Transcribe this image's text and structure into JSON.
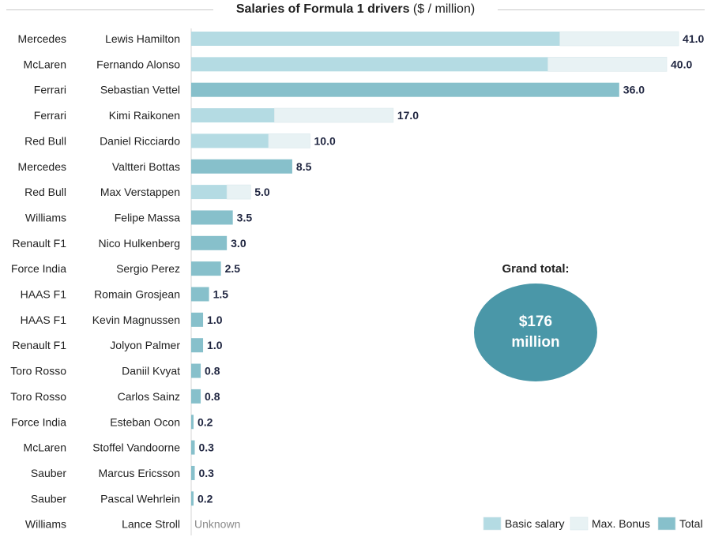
{
  "title": {
    "bold": "Salaries of Formula 1 drivers",
    "rest": " ($ / million)"
  },
  "grand_total": {
    "label": "Grand total:",
    "line1": "$176",
    "line2": "million"
  },
  "colors": {
    "basic": "#b4dbe3",
    "bonus": "#e8f2f4",
    "total": "#87c0cb",
    "circle": "#4a97a8"
  },
  "chart_data": {
    "type": "bar",
    "orientation": "horizontal",
    "stacked": true,
    "title": "Salaries of Formula 1 drivers ($ / million)",
    "xlim": [
      0,
      41
    ],
    "legend": [
      "Basic salary",
      "Max. Bonus",
      "Total"
    ],
    "legend_position": "bottom-right",
    "rows": [
      {
        "team": "Mercedes",
        "driver": "Lewis Hamilton",
        "basic": 31.0,
        "bonus": 10.0,
        "total": null,
        "label": "41.0"
      },
      {
        "team": "McLaren",
        "driver": "Fernando Alonso",
        "basic": 30.0,
        "bonus": 10.0,
        "total": null,
        "label": "40.0"
      },
      {
        "team": "Ferrari",
        "driver": "Sebastian Vettel",
        "basic": null,
        "bonus": null,
        "total": 36.0,
        "label": "36.0"
      },
      {
        "team": "Ferrari",
        "driver": "Kimi Raikonen",
        "basic": 7.0,
        "bonus": 10.0,
        "total": null,
        "label": "17.0"
      },
      {
        "team": "Red Bull",
        "driver": "Daniel Ricciardo",
        "basic": 6.5,
        "bonus": 3.5,
        "total": null,
        "label": "10.0"
      },
      {
        "team": "Mercedes",
        "driver": "Valtteri Bottas",
        "basic": null,
        "bonus": null,
        "total": 8.5,
        "label": "8.5"
      },
      {
        "team": "Red Bull",
        "driver": "Max Verstappen",
        "basic": 3.0,
        "bonus": 2.0,
        "total": null,
        "label": "5.0"
      },
      {
        "team": "Williams",
        "driver": "Felipe Massa",
        "basic": null,
        "bonus": null,
        "total": 3.5,
        "label": "3.5"
      },
      {
        "team": "Renault F1",
        "driver": "Nico Hulkenberg",
        "basic": null,
        "bonus": null,
        "total": 3.0,
        "label": "3.0"
      },
      {
        "team": "Force India",
        "driver": "Sergio Perez",
        "basic": null,
        "bonus": null,
        "total": 2.5,
        "label": "2.5"
      },
      {
        "team": "HAAS F1",
        "driver": "Romain Grosjean",
        "basic": null,
        "bonus": null,
        "total": 1.5,
        "label": "1.5"
      },
      {
        "team": "HAAS F1",
        "driver": "Kevin Magnussen",
        "basic": null,
        "bonus": null,
        "total": 1.0,
        "label": "1.0"
      },
      {
        "team": "Renault F1",
        "driver": "Jolyon Palmer",
        "basic": null,
        "bonus": null,
        "total": 1.0,
        "label": "1.0"
      },
      {
        "team": "Toro Rosso",
        "driver": "Daniil Kvyat",
        "basic": null,
        "bonus": null,
        "total": 0.8,
        "label": "0.8"
      },
      {
        "team": "Toro Rosso",
        "driver": "Carlos Sainz",
        "basic": null,
        "bonus": null,
        "total": 0.8,
        "label": "0.8"
      },
      {
        "team": "Force India",
        "driver": "Esteban Ocon",
        "basic": null,
        "bonus": null,
        "total": 0.2,
        "label": "0.2"
      },
      {
        "team": "McLaren",
        "driver": "Stoffel Vandoorne",
        "basic": null,
        "bonus": null,
        "total": 0.3,
        "label": "0.3"
      },
      {
        "team": "Sauber",
        "driver": "Marcus Ericsson",
        "basic": null,
        "bonus": null,
        "total": 0.3,
        "label": "0.3"
      },
      {
        "team": "Sauber",
        "driver": "Pascal Wehrlein",
        "basic": null,
        "bonus": null,
        "total": 0.2,
        "label": "0.2"
      },
      {
        "team": "Williams",
        "driver": "Lance Stroll",
        "basic": null,
        "bonus": null,
        "total": null,
        "label": "Unknown"
      }
    ]
  }
}
